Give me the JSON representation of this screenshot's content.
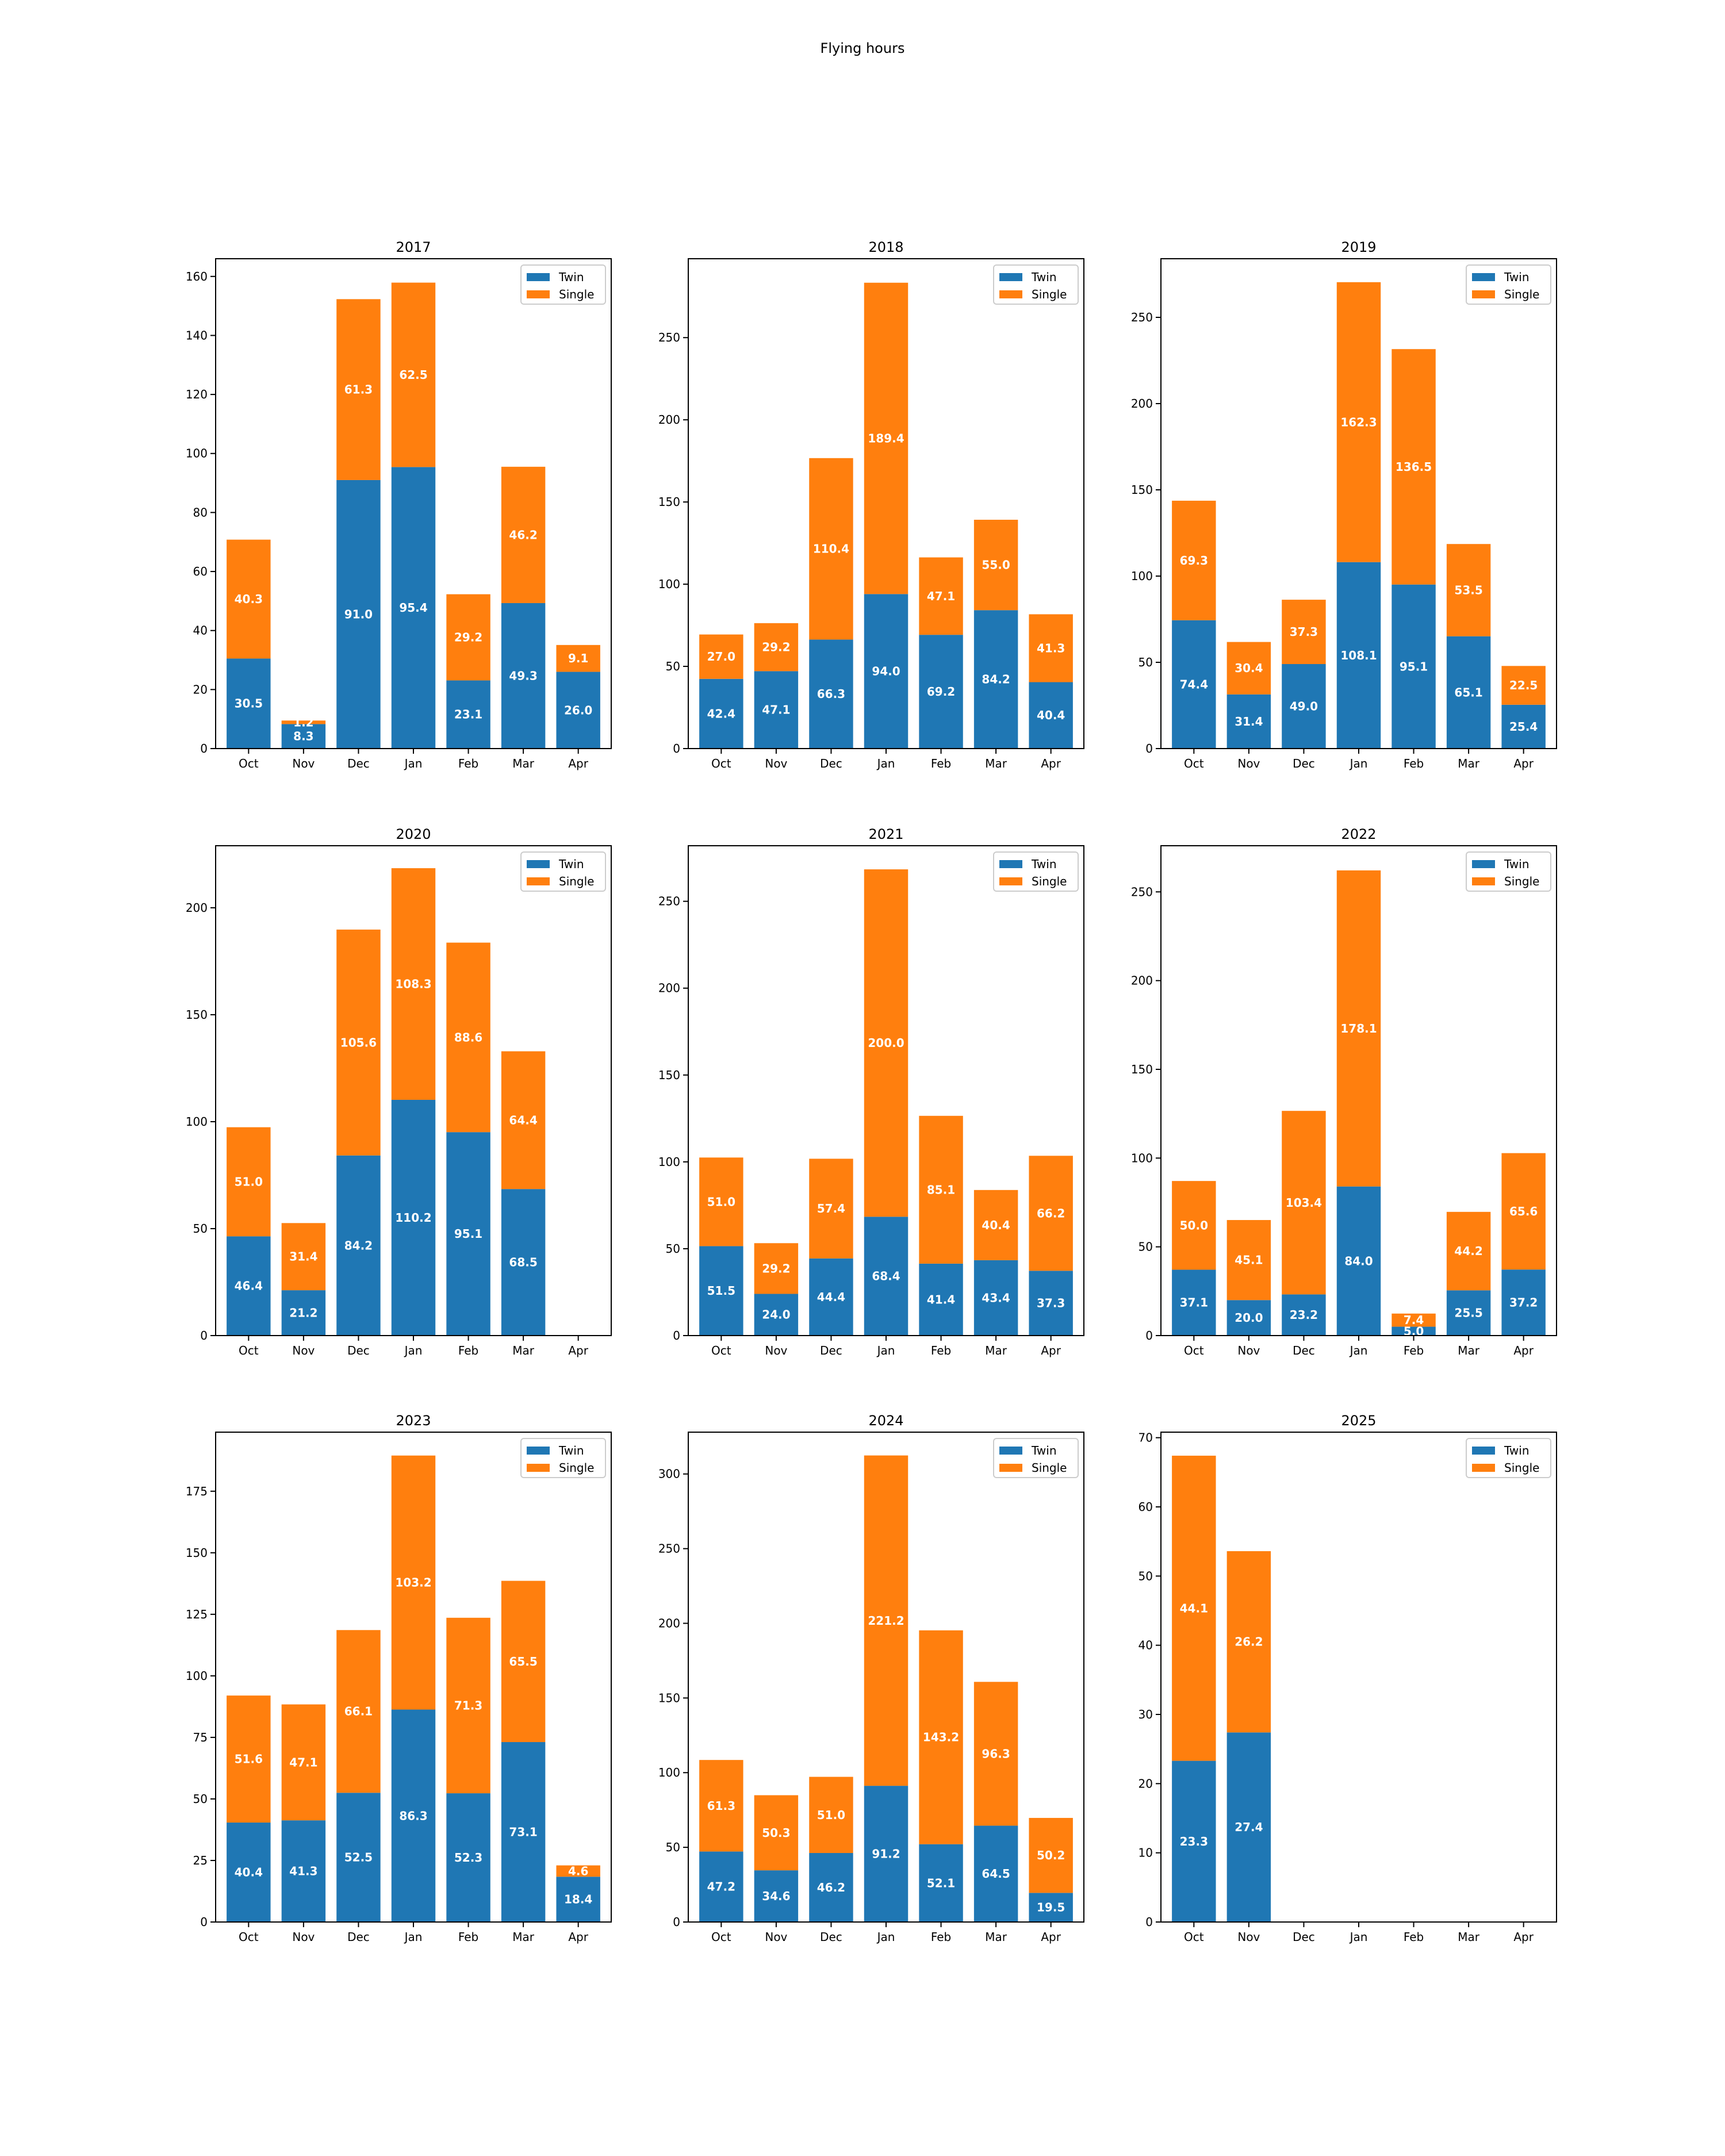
{
  "page_title": "Flying hours",
  "legend_labels": [
    "Twin",
    "Single"
  ],
  "colors": {
    "twin": "#1f77b4",
    "single": "#ff7f0e",
    "axis": "#000000",
    "background": "#ffffff",
    "bar_label": "#ffffff"
  },
  "chart_data": [
    {
      "type": "bar",
      "stacked": true,
      "title": "2017",
      "categories": [
        "Oct",
        "Nov",
        "Dec",
        "Jan",
        "Feb",
        "Mar",
        "Apr"
      ],
      "series": [
        {
          "name": "Twin",
          "values": [
            30.5,
            8.3,
            91.0,
            95.4,
            23.1,
            49.3,
            26.0
          ]
        },
        {
          "name": "Single",
          "values": [
            40.3,
            1.2,
            61.3,
            62.5,
            29.2,
            46.2,
            9.1
          ]
        }
      ],
      "ylim": [
        0,
        166
      ],
      "yticks": [
        0,
        20,
        40,
        60,
        80,
        100,
        120,
        140,
        160
      ],
      "legend": "upper right",
      "grid": false
    },
    {
      "type": "bar",
      "stacked": true,
      "title": "2018",
      "categories": [
        "Oct",
        "Nov",
        "Dec",
        "Jan",
        "Feb",
        "Mar",
        "Apr"
      ],
      "series": [
        {
          "name": "Twin",
          "values": [
            42.4,
            47.1,
            66.3,
            94.0,
            69.2,
            84.2,
            40.4
          ]
        },
        {
          "name": "Single",
          "values": [
            27.0,
            29.2,
            110.4,
            189.4,
            47.1,
            55.0,
            41.3
          ]
        }
      ],
      "ylim": [
        0,
        298
      ],
      "yticks": [
        0,
        50,
        100,
        150,
        200,
        250
      ],
      "legend": "upper right",
      "grid": false
    },
    {
      "type": "bar",
      "stacked": true,
      "title": "2019",
      "categories": [
        "Oct",
        "Nov",
        "Dec",
        "Jan",
        "Feb",
        "Mar",
        "Apr"
      ],
      "series": [
        {
          "name": "Twin",
          "values": [
            74.4,
            31.4,
            49.0,
            108.1,
            95.1,
            65.1,
            25.4
          ]
        },
        {
          "name": "Single",
          "values": [
            69.3,
            30.4,
            37.3,
            162.3,
            136.5,
            53.5,
            22.5
          ]
        }
      ],
      "ylim": [
        0,
        284
      ],
      "yticks": [
        0,
        50,
        100,
        150,
        200,
        250
      ],
      "legend": "upper right",
      "grid": false
    },
    {
      "type": "bar",
      "stacked": true,
      "title": "2020",
      "categories": [
        "Oct",
        "Nov",
        "Dec",
        "Jan",
        "Feb",
        "Mar",
        "Apr"
      ],
      "series": [
        {
          "name": "Twin",
          "values": [
            46.4,
            21.2,
            84.2,
            110.2,
            95.1,
            68.5,
            0.0
          ]
        },
        {
          "name": "Single",
          "values": [
            51.0,
            31.4,
            105.6,
            108.3,
            88.6,
            64.4,
            0.0
          ]
        }
      ],
      "ylim": [
        0,
        229
      ],
      "yticks": [
        0,
        50,
        100,
        150,
        200
      ],
      "legend": "upper right",
      "grid": false
    },
    {
      "type": "bar",
      "stacked": true,
      "title": "2021",
      "categories": [
        "Oct",
        "Nov",
        "Dec",
        "Jan",
        "Feb",
        "Mar",
        "Apr"
      ],
      "series": [
        {
          "name": "Twin",
          "values": [
            51.5,
            24.0,
            44.4,
            68.4,
            41.4,
            43.4,
            37.3
          ]
        },
        {
          "name": "Single",
          "values": [
            51.0,
            29.2,
            57.4,
            200.0,
            85.1,
            40.4,
            66.2
          ]
        }
      ],
      "ylim": [
        0,
        282
      ],
      "yticks": [
        0,
        50,
        100,
        150,
        200,
        250
      ],
      "legend": "upper right",
      "grid": false
    },
    {
      "type": "bar",
      "stacked": true,
      "title": "2022",
      "categories": [
        "Oct",
        "Nov",
        "Dec",
        "Jan",
        "Feb",
        "Mar",
        "Apr"
      ],
      "series": [
        {
          "name": "Twin",
          "values": [
            37.1,
            20.0,
            23.2,
            84.0,
            5.0,
            25.5,
            37.2
          ]
        },
        {
          "name": "Single",
          "values": [
            50.0,
            45.1,
            103.4,
            178.1,
            7.4,
            44.2,
            65.6
          ]
        }
      ],
      "ylim": [
        0,
        276
      ],
      "yticks": [
        0,
        50,
        100,
        150,
        200,
        250
      ],
      "legend": "upper right",
      "grid": false
    },
    {
      "type": "bar",
      "stacked": true,
      "title": "2023",
      "categories": [
        "Oct",
        "Nov",
        "Dec",
        "Jan",
        "Feb",
        "Mar",
        "Apr"
      ],
      "series": [
        {
          "name": "Twin",
          "values": [
            40.4,
            41.3,
            52.5,
            86.3,
            52.3,
            73.1,
            18.4
          ]
        },
        {
          "name": "Single",
          "values": [
            51.6,
            47.1,
            66.1,
            103.2,
            71.3,
            65.5,
            4.6
          ]
        }
      ],
      "ylim": [
        0,
        199
      ],
      "yticks": [
        0,
        25,
        50,
        75,
        100,
        125,
        150,
        175
      ],
      "legend": "upper right",
      "grid": false
    },
    {
      "type": "bar",
      "stacked": true,
      "title": "2024",
      "categories": [
        "Oct",
        "Nov",
        "Dec",
        "Jan",
        "Feb",
        "Mar",
        "Apr"
      ],
      "series": [
        {
          "name": "Twin",
          "values": [
            47.2,
            34.6,
            46.2,
            91.2,
            52.1,
            64.5,
            19.5
          ]
        },
        {
          "name": "Single",
          "values": [
            61.3,
            50.3,
            51.0,
            221.2,
            143.2,
            96.3,
            50.2
          ]
        }
      ],
      "ylim": [
        0,
        328
      ],
      "yticks": [
        0,
        50,
        100,
        150,
        200,
        250,
        300
      ],
      "legend": "upper right",
      "grid": false
    },
    {
      "type": "bar",
      "stacked": true,
      "title": "2025",
      "categories": [
        "Oct",
        "Nov",
        "Dec",
        "Jan",
        "Feb",
        "Mar",
        "Apr"
      ],
      "series": [
        {
          "name": "Twin",
          "values": [
            23.3,
            27.4,
            0.0,
            0.0,
            0.0,
            0.0,
            0.0
          ]
        },
        {
          "name": "Single",
          "values": [
            44.1,
            26.2,
            0.0,
            0.0,
            0.0,
            0.0,
            0.0
          ]
        }
      ],
      "ylim": [
        0,
        70.8
      ],
      "yticks": [
        0,
        10,
        20,
        30,
        40,
        50,
        60,
        70
      ],
      "legend": "upper right",
      "grid": false
    }
  ]
}
